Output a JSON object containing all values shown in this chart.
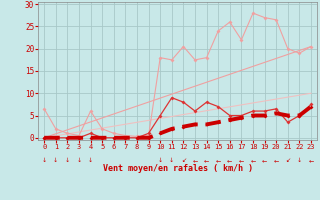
{
  "bg_color": "#c8e8e8",
  "grid_color": "#a8c8c8",
  "xlabel": "Vent moyen/en rafales ( km/h )",
  "xlim": [
    -0.5,
    23.5
  ],
  "ylim": [
    -0.5,
    30.5
  ],
  "yticks": [
    0,
    5,
    10,
    15,
    20,
    25,
    30
  ],
  "xticks": [
    0,
    1,
    2,
    3,
    4,
    5,
    6,
    7,
    8,
    9,
    10,
    11,
    12,
    13,
    14,
    15,
    16,
    17,
    18,
    19,
    20,
    21,
    22,
    23
  ],
  "light_pink_series_y": [
    6.5,
    2,
    1,
    0.5,
    6,
    2,
    1,
    0.5,
    0.3,
    0.5,
    18,
    17.5,
    20.5,
    17.5,
    18,
    24,
    26,
    22,
    28,
    27,
    26.5,
    20,
    19,
    20.5
  ],
  "medium_red_series_y": [
    0,
    0,
    0,
    0,
    1,
    0,
    0,
    0,
    0,
    1,
    5,
    9,
    8,
    6,
    8,
    7,
    5,
    5,
    6,
    6,
    6.5,
    3.5,
    5,
    7.5
  ],
  "thick_red_series_y": [
    0,
    0,
    0,
    0,
    0,
    0,
    0,
    0,
    0,
    0,
    1,
    2,
    2.5,
    3,
    3,
    3.5,
    4,
    4.5,
    5,
    5,
    5.5,
    5,
    5,
    7
  ],
  "diag1_end_y": 20.5,
  "diag2_end_y": 10.0,
  "color_light": "#f0a0a0",
  "color_medium": "#dd3333",
  "color_thick": "#cc0000",
  "color_diag1": "#f0a0a0",
  "color_diag2": "#f0c0c0",
  "arrow_downs": [
    0,
    1,
    2,
    3,
    4,
    10,
    11,
    22
  ],
  "arrow_lefts": [
    13,
    14,
    15,
    16,
    17,
    18,
    19,
    20,
    23
  ],
  "arrow_diag": [
    12,
    21
  ],
  "xlabel_color": "#cc0000",
  "tick_color": "#cc0000",
  "spine_color": "#888888"
}
